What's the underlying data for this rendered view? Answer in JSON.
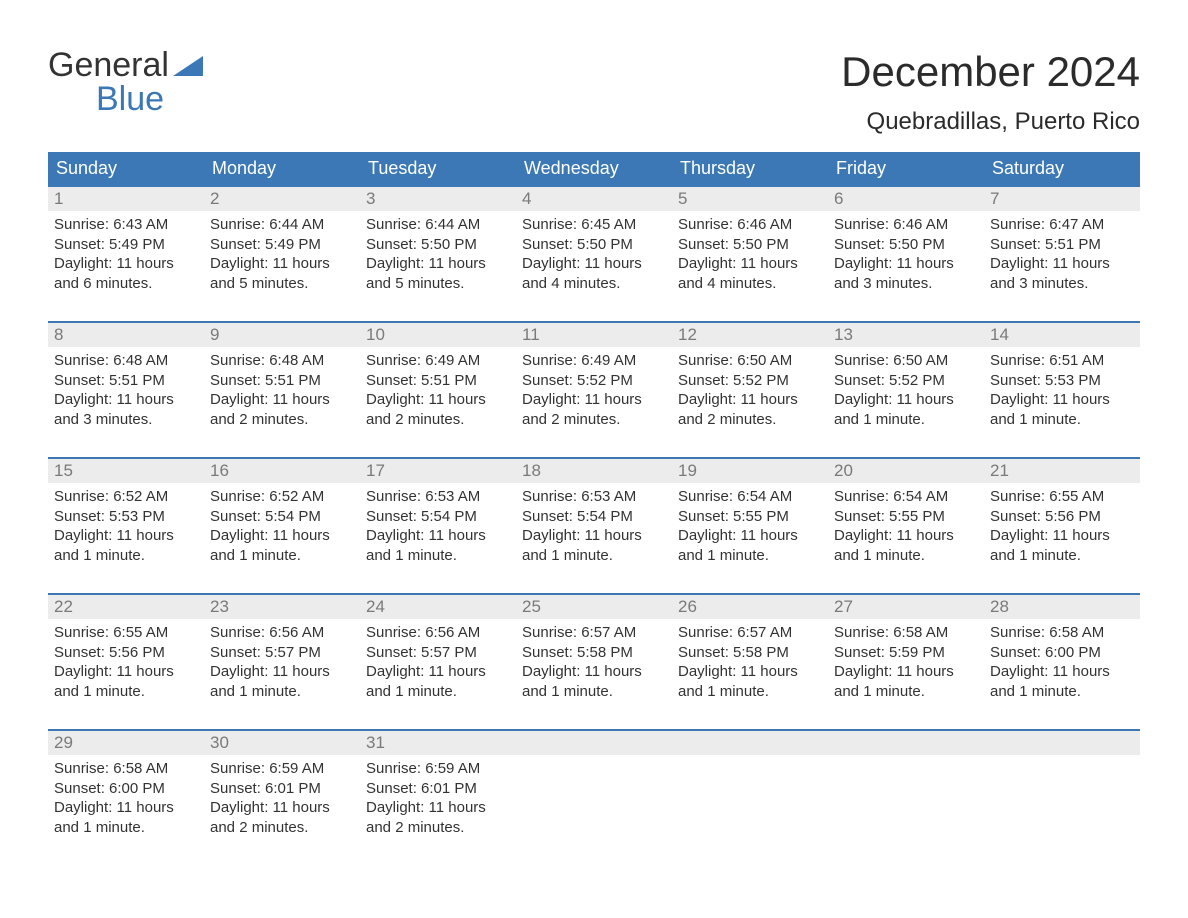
{
  "logo": {
    "word1": "General",
    "word2": "Blue",
    "triangle_color": "#3b78b5"
  },
  "month_title": "December 2024",
  "location": "Quebradillas, Puerto Rico",
  "colors": {
    "header_bg": "#3b78b5",
    "header_text": "#ffffff",
    "daynum_bg": "#ececec",
    "daynum_text": "#7a7a7a",
    "border_top": "#3b78b5",
    "body_text": "#333333"
  },
  "day_labels": [
    "Sunday",
    "Monday",
    "Tuesday",
    "Wednesday",
    "Thursday",
    "Friday",
    "Saturday"
  ],
  "weeks": [
    [
      {
        "n": "1",
        "sunrise": "Sunrise: 6:43 AM",
        "sunset": "Sunset: 5:49 PM",
        "daylight": "Daylight: 11 hours and 6 minutes."
      },
      {
        "n": "2",
        "sunrise": "Sunrise: 6:44 AM",
        "sunset": "Sunset: 5:49 PM",
        "daylight": "Daylight: 11 hours and 5 minutes."
      },
      {
        "n": "3",
        "sunrise": "Sunrise: 6:44 AM",
        "sunset": "Sunset: 5:50 PM",
        "daylight": "Daylight: 11 hours and 5 minutes."
      },
      {
        "n": "4",
        "sunrise": "Sunrise: 6:45 AM",
        "sunset": "Sunset: 5:50 PM",
        "daylight": "Daylight: 11 hours and 4 minutes."
      },
      {
        "n": "5",
        "sunrise": "Sunrise: 6:46 AM",
        "sunset": "Sunset: 5:50 PM",
        "daylight": "Daylight: 11 hours and 4 minutes."
      },
      {
        "n": "6",
        "sunrise": "Sunrise: 6:46 AM",
        "sunset": "Sunset: 5:50 PM",
        "daylight": "Daylight: 11 hours and 3 minutes."
      },
      {
        "n": "7",
        "sunrise": "Sunrise: 6:47 AM",
        "sunset": "Sunset: 5:51 PM",
        "daylight": "Daylight: 11 hours and 3 minutes."
      }
    ],
    [
      {
        "n": "8",
        "sunrise": "Sunrise: 6:48 AM",
        "sunset": "Sunset: 5:51 PM",
        "daylight": "Daylight: 11 hours and 3 minutes."
      },
      {
        "n": "9",
        "sunrise": "Sunrise: 6:48 AM",
        "sunset": "Sunset: 5:51 PM",
        "daylight": "Daylight: 11 hours and 2 minutes."
      },
      {
        "n": "10",
        "sunrise": "Sunrise: 6:49 AM",
        "sunset": "Sunset: 5:51 PM",
        "daylight": "Daylight: 11 hours and 2 minutes."
      },
      {
        "n": "11",
        "sunrise": "Sunrise: 6:49 AM",
        "sunset": "Sunset: 5:52 PM",
        "daylight": "Daylight: 11 hours and 2 minutes."
      },
      {
        "n": "12",
        "sunrise": "Sunrise: 6:50 AM",
        "sunset": "Sunset: 5:52 PM",
        "daylight": "Daylight: 11 hours and 2 minutes."
      },
      {
        "n": "13",
        "sunrise": "Sunrise: 6:50 AM",
        "sunset": "Sunset: 5:52 PM",
        "daylight": "Daylight: 11 hours and 1 minute."
      },
      {
        "n": "14",
        "sunrise": "Sunrise: 6:51 AM",
        "sunset": "Sunset: 5:53 PM",
        "daylight": "Daylight: 11 hours and 1 minute."
      }
    ],
    [
      {
        "n": "15",
        "sunrise": "Sunrise: 6:52 AM",
        "sunset": "Sunset: 5:53 PM",
        "daylight": "Daylight: 11 hours and 1 minute."
      },
      {
        "n": "16",
        "sunrise": "Sunrise: 6:52 AM",
        "sunset": "Sunset: 5:54 PM",
        "daylight": "Daylight: 11 hours and 1 minute."
      },
      {
        "n": "17",
        "sunrise": "Sunrise: 6:53 AM",
        "sunset": "Sunset: 5:54 PM",
        "daylight": "Daylight: 11 hours and 1 minute."
      },
      {
        "n": "18",
        "sunrise": "Sunrise: 6:53 AM",
        "sunset": "Sunset: 5:54 PM",
        "daylight": "Daylight: 11 hours and 1 minute."
      },
      {
        "n": "19",
        "sunrise": "Sunrise: 6:54 AM",
        "sunset": "Sunset: 5:55 PM",
        "daylight": "Daylight: 11 hours and 1 minute."
      },
      {
        "n": "20",
        "sunrise": "Sunrise: 6:54 AM",
        "sunset": "Sunset: 5:55 PM",
        "daylight": "Daylight: 11 hours and 1 minute."
      },
      {
        "n": "21",
        "sunrise": "Sunrise: 6:55 AM",
        "sunset": "Sunset: 5:56 PM",
        "daylight": "Daylight: 11 hours and 1 minute."
      }
    ],
    [
      {
        "n": "22",
        "sunrise": "Sunrise: 6:55 AM",
        "sunset": "Sunset: 5:56 PM",
        "daylight": "Daylight: 11 hours and 1 minute."
      },
      {
        "n": "23",
        "sunrise": "Sunrise: 6:56 AM",
        "sunset": "Sunset: 5:57 PM",
        "daylight": "Daylight: 11 hours and 1 minute."
      },
      {
        "n": "24",
        "sunrise": "Sunrise: 6:56 AM",
        "sunset": "Sunset: 5:57 PM",
        "daylight": "Daylight: 11 hours and 1 minute."
      },
      {
        "n": "25",
        "sunrise": "Sunrise: 6:57 AM",
        "sunset": "Sunset: 5:58 PM",
        "daylight": "Daylight: 11 hours and 1 minute."
      },
      {
        "n": "26",
        "sunrise": "Sunrise: 6:57 AM",
        "sunset": "Sunset: 5:58 PM",
        "daylight": "Daylight: 11 hours and 1 minute."
      },
      {
        "n": "27",
        "sunrise": "Sunrise: 6:58 AM",
        "sunset": "Sunset: 5:59 PM",
        "daylight": "Daylight: 11 hours and 1 minute."
      },
      {
        "n": "28",
        "sunrise": "Sunrise: 6:58 AM",
        "sunset": "Sunset: 6:00 PM",
        "daylight": "Daylight: 11 hours and 1 minute."
      }
    ],
    [
      {
        "n": "29",
        "sunrise": "Sunrise: 6:58 AM",
        "sunset": "Sunset: 6:00 PM",
        "daylight": "Daylight: 11 hours and 1 minute."
      },
      {
        "n": "30",
        "sunrise": "Sunrise: 6:59 AM",
        "sunset": "Sunset: 6:01 PM",
        "daylight": "Daylight: 11 hours and 2 minutes."
      },
      {
        "n": "31",
        "sunrise": "Sunrise: 6:59 AM",
        "sunset": "Sunset: 6:01 PM",
        "daylight": "Daylight: 11 hours and 2 minutes."
      },
      {
        "n": ""
      },
      {
        "n": ""
      },
      {
        "n": ""
      },
      {
        "n": ""
      }
    ]
  ]
}
